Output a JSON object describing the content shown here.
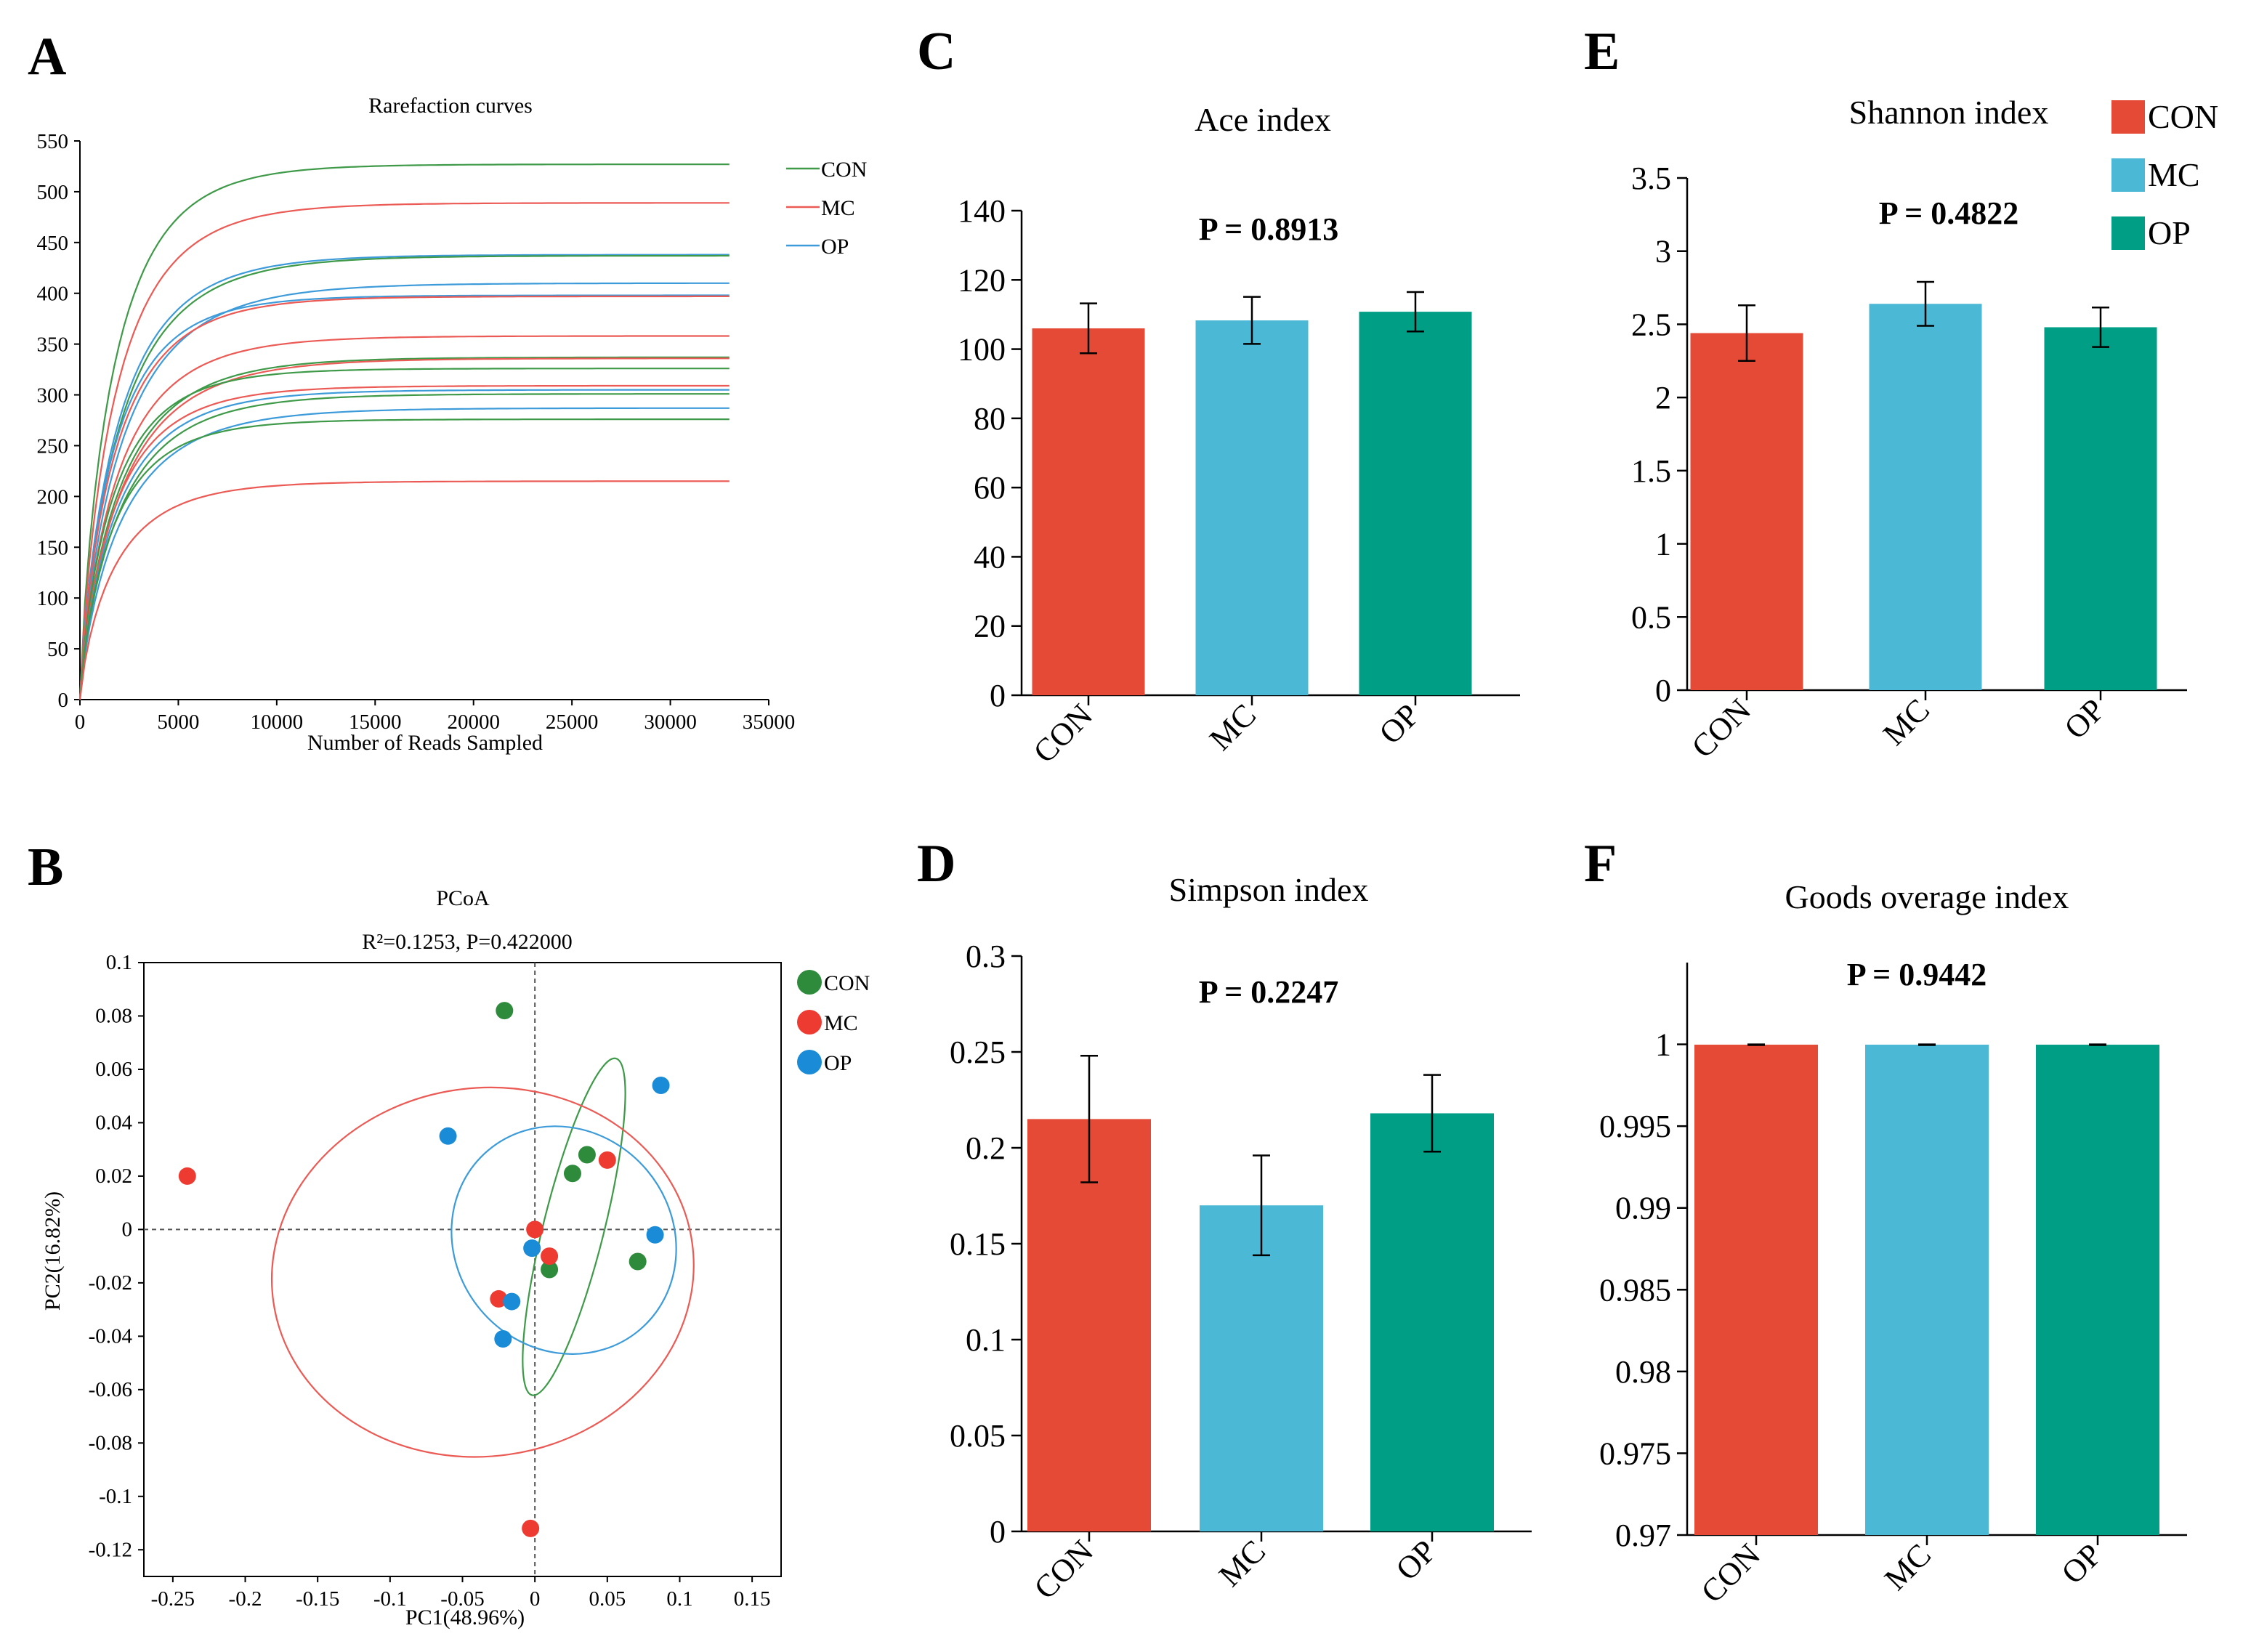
{
  "panels": {
    "A": "A",
    "B": "B",
    "C": "C",
    "D": "D",
    "E": "E",
    "F": "F"
  },
  "colors": {
    "CON": "#E44A35",
    "MC": "#4BB8D5",
    "OP": "#009E85",
    "con_line": "#3E9A48",
    "mc_line": "#EB5A54",
    "op_line": "#3D9BDA",
    "con_dot": "#2E8B3C",
    "mc_dot": "#EE3B32",
    "op_dot": "#1A8BD6"
  },
  "chart_data": [
    {
      "id": "A",
      "type": "line",
      "title": "Rarefaction curves",
      "xlabel": "Number of Reads Sampled",
      "ylabel": "",
      "xlim": [
        0,
        35000
      ],
      "ylim": [
        0,
        550
      ],
      "xticks": [
        "0",
        "5000",
        "10000",
        "15000",
        "20000",
        "25000",
        "30000",
        "35000"
      ],
      "yticks": [
        "0",
        "50",
        "100",
        "150",
        "200",
        "250",
        "300",
        "350",
        "400",
        "450",
        "500",
        "550"
      ],
      "legend": [
        "CON",
        "MC",
        "OP"
      ],
      "series": [
        {
          "name": "CON",
          "group": "CON",
          "plateau": 527
        },
        {
          "name": "MC",
          "group": "MC",
          "plateau": 489
        },
        {
          "name": "OP",
          "group": "OP",
          "plateau": 438
        },
        {
          "name": "CON",
          "group": "CON",
          "plateau": 437
        },
        {
          "name": "OP",
          "group": "OP",
          "plateau": 410
        },
        {
          "name": "OP",
          "group": "OP",
          "plateau": 398
        },
        {
          "name": "MC",
          "group": "MC",
          "plateau": 397
        },
        {
          "name": "MC",
          "group": "MC",
          "plateau": 358
        },
        {
          "name": "CON",
          "group": "CON",
          "plateau": 337
        },
        {
          "name": "MC",
          "group": "MC",
          "plateau": 336
        },
        {
          "name": "CON",
          "group": "CON",
          "plateau": 326
        },
        {
          "name": "MC",
          "group": "MC",
          "plateau": 309
        },
        {
          "name": "OP",
          "group": "OP",
          "plateau": 305
        },
        {
          "name": "CON",
          "group": "CON",
          "plateau": 301
        },
        {
          "name": "OP",
          "group": "OP",
          "plateau": 287
        },
        {
          "name": "CON",
          "group": "CON",
          "plateau": 276
        },
        {
          "name": "MC",
          "group": "MC",
          "plateau": 215
        }
      ]
    },
    {
      "id": "B",
      "type": "scatter",
      "title": "PCoA",
      "subtitle": "R²=0.1253, P=0.422000",
      "xlabel": "PC1(48.96%)",
      "ylabel": "PC2(16.82%)",
      "xlim": [
        -0.27,
        0.17
      ],
      "ylim": [
        -0.13,
        0.1
      ],
      "xticks": [
        -0.25,
        -0.2,
        -0.15,
        -0.1,
        -0.05,
        0,
        0.05,
        0.1,
        0.15
      ],
      "xtick_labels": [
        "-0.25",
        "-0.2",
        "-0.15",
        "-0.1",
        "-0.05",
        "0",
        "0.05",
        "0.1",
        "0.15"
      ],
      "yticks": [
        0.1,
        0.08,
        0.06,
        0.04,
        0.02,
        0,
        -0.02,
        -0.04,
        -0.06,
        -0.08,
        -0.1,
        -0.12
      ],
      "ytick_labels": [
        "0.1",
        "0.08",
        "0.06",
        "0.04",
        "0.02",
        "0",
        "-0.02",
        "-0.04",
        "-0.06",
        "-0.08",
        "-0.1",
        "-0.12"
      ],
      "legend": [
        "CON",
        "MC",
        "OP"
      ],
      "series": [
        {
          "name": "CON",
          "points": [
            [
              -0.021,
              0.082
            ],
            [
              0.036,
              0.028
            ],
            [
              0.026,
              0.021
            ],
            [
              0.071,
              -0.012
            ],
            [
              0.01,
              -0.015
            ]
          ]
        },
        {
          "name": "MC",
          "points": [
            [
              -0.24,
              0.02
            ],
            [
              0.05,
              0.026
            ],
            [
              0.0,
              0.0
            ],
            [
              0.01,
              -0.01
            ],
            [
              -0.025,
              -0.026
            ],
            [
              -0.003,
              -0.112
            ]
          ]
        },
        {
          "name": "OP",
          "points": [
            [
              -0.06,
              0.035
            ],
            [
              0.087,
              0.054
            ],
            [
              0.083,
              -0.002
            ],
            [
              -0.002,
              -0.007
            ],
            [
              -0.016,
              -0.027
            ],
            [
              -0.022,
              -0.041
            ]
          ]
        }
      ],
      "ellipses": [
        {
          "name": "CON",
          "cx": 0.027,
          "cy": 0.001,
          "rx": 0.021,
          "ry": 0.065,
          "angle": 14
        },
        {
          "name": "MC",
          "cx": -0.036,
          "cy": -0.016,
          "rx": 0.146,
          "ry": 0.069,
          "angle": -8
        },
        {
          "name": "OP",
          "cx": 0.02,
          "cy": -0.004,
          "rx": 0.075,
          "ry": 0.044,
          "angle": -40
        }
      ]
    },
    {
      "id": "C",
      "type": "bar",
      "title": "Ace index",
      "pvalue": "P = 0.8913",
      "categories": [
        "CON",
        "MC",
        "OP"
      ],
      "values": [
        106,
        108.3,
        110.8
      ],
      "errors": [
        7.2,
        6.8,
        5.7
      ],
      "ylim": [
        0,
        140
      ],
      "yticks": [
        0,
        20,
        40,
        60,
        80,
        100,
        120,
        140
      ],
      "ytick_labels": [
        "0",
        "20",
        "40",
        "60",
        "80",
        "100",
        "120",
        "140"
      ]
    },
    {
      "id": "D",
      "type": "bar",
      "title": "Simpson index",
      "pvalue": "P = 0.2247",
      "categories": [
        "CON",
        "MC",
        "OP"
      ],
      "values": [
        0.215,
        0.17,
        0.218
      ],
      "errors": [
        0.033,
        0.026,
        0.02
      ],
      "ylim": [
        0,
        0.3
      ],
      "yticks": [
        0,
        0.05,
        0.1,
        0.15,
        0.2,
        0.25,
        0.3
      ],
      "ytick_labels": [
        "0",
        "0.05",
        "0.1",
        "0.15",
        "0.2",
        "0.25",
        "0.3"
      ]
    },
    {
      "id": "E",
      "type": "bar",
      "title": "Shannon index",
      "pvalue": "P = 0.4822",
      "categories": [
        "CON",
        "MC",
        "OP"
      ],
      "values": [
        2.44,
        2.64,
        2.48
      ],
      "errors": [
        0.19,
        0.15,
        0.135
      ],
      "ylim": [
        0,
        3.5
      ],
      "yticks": [
        0,
        0.5,
        1,
        1.5,
        2,
        2.5,
        3,
        3.5
      ],
      "ytick_labels": [
        "0",
        "0.5",
        "1",
        "1.5",
        "2",
        "2.5",
        "3",
        "3.5"
      ],
      "legend": [
        "CON",
        "MC",
        "OP"
      ]
    },
    {
      "id": "F",
      "type": "bar",
      "title": "Goods overage index",
      "pvalue": "P = 0.9442",
      "categories": [
        "CON",
        "MC",
        "OP"
      ],
      "values": [
        0.99998,
        0.99998,
        0.99998
      ],
      "errors": [
        2e-05,
        2e-05,
        2e-05
      ],
      "ylim": [
        0.97,
        1.005
      ],
      "yticks": [
        0.97,
        0.975,
        0.98,
        0.985,
        0.99,
        0.995,
        1
      ],
      "ytick_labels": [
        "0.97",
        "0.975",
        "0.98",
        "0.985",
        "0.99",
        "0.995",
        "1"
      ]
    }
  ]
}
